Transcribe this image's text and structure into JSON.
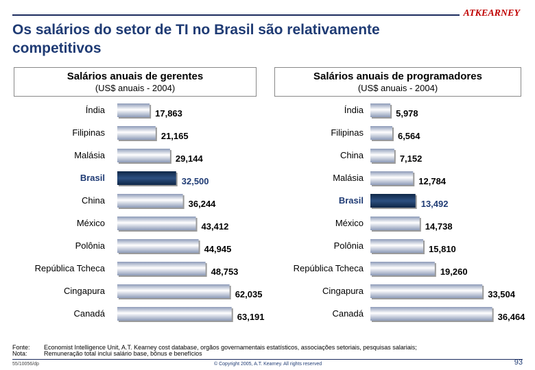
{
  "header": {
    "title": "Os salários do setor de TI no Brasil são relativamente competitivos",
    "logo": "ATKEARNEY"
  },
  "chart_data": [
    {
      "type": "bar",
      "orientation": "horizontal",
      "title": "Salários anuais de gerentes",
      "subtitle": "(US$ anuais - 2004)",
      "categories": [
        "Índia",
        "Filipinas",
        "Malásia",
        "Brasil",
        "China",
        "México",
        "Polônia",
        "República Tcheca",
        "Cingapura",
        "Canadá"
      ],
      "values": [
        17863,
        21165,
        29144,
        32500,
        36244,
        43412,
        44945,
        48753,
        62035,
        63191
      ],
      "labels": [
        "17,863",
        "21,165",
        "29,144",
        "32,500",
        "36,244",
        "43,412",
        "44,945",
        "48,753",
        "62,035",
        "63,191"
      ],
      "highlight": "Brasil",
      "xlim": [
        0,
        72000
      ],
      "colors": {
        "bar": "#b9c3d6",
        "highlight": "#17365f",
        "highlight_text": "#1f3b74"
      }
    },
    {
      "type": "bar",
      "orientation": "horizontal",
      "title": "Salários anuais de programadores",
      "subtitle": "(US$ anuais - 2004)",
      "categories": [
        "Índia",
        "Filipinas",
        "China",
        "Malásia",
        "Brasil",
        "México",
        "Polônia",
        "República Tcheca",
        "Cingapura",
        "Canadá"
      ],
      "values": [
        5978,
        6564,
        7152,
        12784,
        13492,
        14738,
        15810,
        19260,
        33504,
        36464
      ],
      "labels": [
        "5,978",
        "6,564",
        "7,152",
        "12,784",
        "13,492",
        "14,738",
        "15,810",
        "19,260",
        "33,504",
        "36,464"
      ],
      "highlight": "Brasil",
      "xlim": [
        0,
        39000
      ],
      "colors": {
        "bar": "#b9c3d6",
        "highlight": "#17365f",
        "highlight_text": "#1f3b74"
      }
    }
  ],
  "footer": {
    "source_label": "Fonte:",
    "source_text": "Economist Intelligence Unit, A.T. Kearney cost database, orgãos governamentais estatísticos, associações setoriais, pesquisas salariais;",
    "note_label": "Nota:",
    "note_text": "Remuneração total inclui salário base, bônus e benefícios",
    "doc_id": "55/10056/dp",
    "copyright": "© Copyright 2005, A.T. Kearney. All rights reserved",
    "page_number": "93"
  }
}
